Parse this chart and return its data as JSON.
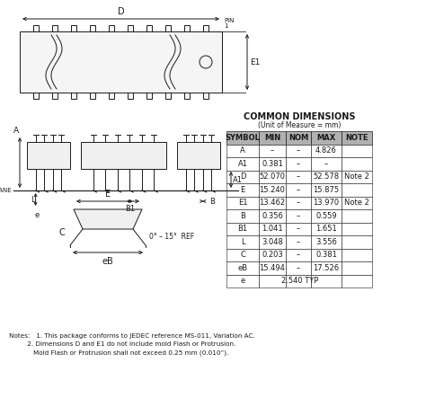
{
  "title": "COMMON DIMENSIONS",
  "subtitle": "(Unit of Measure = mm)",
  "table_headers": [
    "SYMBOL",
    "MIN",
    "NOM",
    "MAX",
    "NOTE"
  ],
  "table_data": [
    [
      "A",
      "–",
      "–",
      "4.826",
      ""
    ],
    [
      "A1",
      "0.381",
      "–",
      "–",
      ""
    ],
    [
      "D",
      "52.070",
      "–",
      "52.578",
      "Note 2"
    ],
    [
      "E",
      "15.240",
      "–",
      "15.875",
      ""
    ],
    [
      "E1",
      "13.462",
      "–",
      "13.970",
      "Note 2"
    ],
    [
      "B",
      "0.356",
      "–",
      "0.559",
      ""
    ],
    [
      "B1",
      "1.041",
      "–",
      "1.651",
      ""
    ],
    [
      "L",
      "3.048",
      "–",
      "3.556",
      ""
    ],
    [
      "C",
      "0.203",
      "–",
      "0.381",
      ""
    ],
    [
      "eB",
      "15.494",
      "–",
      "17.526",
      ""
    ],
    [
      "e",
      "",
      "2.540 TYP",
      "",
      ""
    ]
  ],
  "note_lines": [
    "Notes:   1. This package conforms to JEDEC reference MS-011, Variation AC.",
    "         2. Dimensions D and E1 do not include mold Flash or Protrusion.",
    "            Mold Flash or Protrusion shall not exceed 0.25 mm (0.010”)."
  ],
  "bg_color": "#ffffff",
  "line_color": "#1a1a1a",
  "table_header_bg": "#aaaaaa",
  "font_size_table": 6.5,
  "font_size_notes": 5.5
}
